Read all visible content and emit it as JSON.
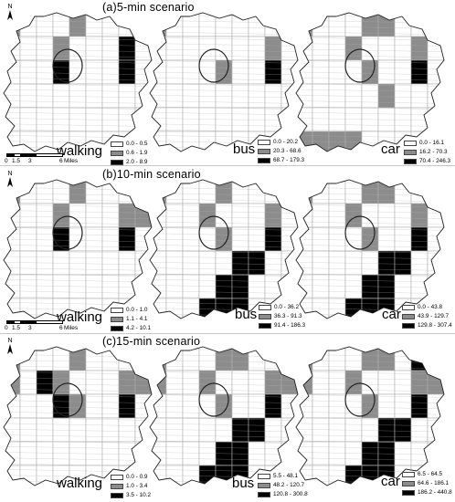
{
  "scale": {
    "ticks": [
      "0",
      "1.5",
      "3",
      "6"
    ],
    "unit": "Miles"
  },
  "north": "N",
  "colors": {
    "class1": "#ffffff",
    "class2": "#8c8c8c",
    "class3": "#000000",
    "outline": "#222222",
    "streets": "#b0b0b0"
  },
  "panels": [
    {
      "title": "(a)5-min scenario",
      "maps": [
        {
          "mode": "walking",
          "legend": [
            "0.0 - 0.5",
            "0.6 - 1.9",
            "2.0 - 8.9"
          ],
          "zones": [
            2,
            0,
            0,
            0,
            2,
            0,
            0,
            0,
            1,
            1,
            0,
            1,
            2,
            0,
            0,
            1,
            3,
            1,
            0,
            0,
            0,
            3,
            1,
            0,
            0,
            3,
            0,
            0,
            0,
            0,
            0,
            0,
            0,
            0,
            0,
            0,
            0,
            0,
            0,
            0,
            0,
            0,
            0,
            0,
            0,
            0,
            0,
            0,
            0,
            0,
            0,
            0,
            0,
            0
          ]
        },
        {
          "mode": "bus",
          "legend": [
            "0.0 - 20.2",
            "20.3 - 68.6",
            "68.7 - 179.3"
          ],
          "zones": [
            2,
            0,
            0,
            0,
            0,
            0,
            0,
            0,
            2,
            0,
            0,
            1,
            0,
            0,
            0,
            1,
            2,
            1,
            0,
            0,
            0,
            0,
            2,
            0,
            0,
            3,
            0,
            0,
            0,
            0,
            0,
            0,
            0,
            0,
            0,
            0,
            0,
            0,
            0,
            0,
            0,
            0,
            0,
            0,
            0,
            0,
            0,
            0,
            0,
            0,
            0,
            0,
            0,
            0
          ]
        },
        {
          "mode": "car",
          "legend": [
            "0.0 - 16.1",
            "16.2 - 70.3",
            "70.4 - 246.3"
          ],
          "zones": [
            2,
            0,
            0,
            0,
            2,
            2,
            0,
            0,
            2,
            1,
            0,
            1,
            2,
            0,
            0,
            1,
            2,
            1,
            0,
            0,
            0,
            0,
            2,
            0,
            0,
            3,
            0,
            0,
            0,
            0,
            0,
            0,
            2,
            0,
            0,
            0,
            0,
            0,
            0,
            0,
            0,
            0,
            0,
            0,
            0,
            2,
            2,
            2,
            2,
            0,
            0,
            0,
            0,
            2
          ]
        }
      ]
    },
    {
      "title": "(b)10-min scenario",
      "maps": [
        {
          "mode": "walking",
          "legend": [
            "0.0 - 1.0",
            "1.1 - 4.1",
            "4.2 - 10.1"
          ],
          "zones": [
            2,
            0,
            0,
            0,
            2,
            0,
            0,
            0,
            2,
            1,
            0,
            1,
            2,
            0,
            0,
            1,
            2,
            2,
            0,
            0,
            0,
            3,
            1,
            0,
            0,
            3,
            0,
            0,
            0,
            0,
            0,
            0,
            0,
            0,
            0,
            0,
            0,
            0,
            0,
            0,
            0,
            0,
            0,
            0,
            0,
            0,
            0,
            0,
            0,
            0,
            0,
            0,
            0,
            0
          ]
        },
        {
          "mode": "bus",
          "legend": [
            "0.0 - 36.2",
            "36.3 - 91.3",
            "91.4 - 186.3"
          ],
          "zones": [
            2,
            0,
            0,
            0,
            2,
            0,
            0,
            0,
            2,
            1,
            0,
            1,
            2,
            0,
            0,
            1,
            2,
            1,
            0,
            0,
            0,
            0,
            2,
            0,
            0,
            3,
            0,
            0,
            0,
            0,
            0,
            0,
            3,
            3,
            0,
            0,
            0,
            0,
            0,
            0,
            3,
            3,
            0,
            0,
            0,
            0,
            0,
            0,
            3,
            3,
            3,
            0,
            0,
            0
          ]
        },
        {
          "mode": "car",
          "legend": [
            "0.0 - 43.8",
            "43.9 - 129.7",
            "129.8 - 307.4"
          ],
          "zones": [
            2,
            0,
            0,
            0,
            2,
            2,
            0,
            0,
            2,
            1,
            0,
            1,
            2,
            0,
            0,
            1,
            2,
            1,
            0,
            0,
            0,
            0,
            2,
            0,
            0,
            3,
            0,
            0,
            0,
            0,
            0,
            0,
            3,
            3,
            0,
            0,
            0,
            0,
            0,
            0,
            3,
            3,
            0,
            0,
            0,
            0,
            0,
            0,
            3,
            3,
            3,
            0,
            0,
            0
          ]
        }
      ]
    },
    {
      "title": "(c)15-min scenario",
      "maps": [
        {
          "mode": "walking",
          "legend": [
            "0.0 - 0.9",
            "1.0 - 3.4",
            "3.5 - 10.2"
          ],
          "zones": [
            2,
            0,
            0,
            0,
            2,
            0,
            0,
            0,
            2,
            2,
            0,
            3,
            2,
            0,
            0,
            1,
            2,
            2,
            0,
            0,
            0,
            3,
            2,
            0,
            0,
            3,
            0,
            0,
            0,
            0,
            0,
            0,
            0,
            0,
            0,
            0,
            0,
            0,
            0,
            0,
            0,
            0,
            0,
            0,
            0,
            0,
            0,
            0,
            0,
            0,
            0,
            0,
            0,
            0
          ]
        },
        {
          "mode": "bus",
          "legend": [
            "5.5 - 48.1",
            "48.2 - 120.7",
            "120.8 - 300.8"
          ],
          "zones": [
            2,
            0,
            0,
            0,
            2,
            2,
            0,
            0,
            2,
            2,
            0,
            1,
            2,
            0,
            0,
            1,
            2,
            2,
            0,
            0,
            0,
            0,
            2,
            0,
            0,
            3,
            0,
            0,
            0,
            0,
            0,
            0,
            3,
            3,
            0,
            0,
            0,
            0,
            0,
            0,
            3,
            3,
            0,
            0,
            0,
            0,
            0,
            0,
            3,
            3,
            3,
            0,
            0,
            2
          ]
        },
        {
          "mode": "car",
          "legend": [
            "6.5 - 64.5",
            "64.6 - 186.1",
            "186.2 - 440.8"
          ],
          "zones": [
            2,
            0,
            0,
            0,
            2,
            2,
            0,
            3,
            2,
            2,
            0,
            1,
            2,
            0,
            0,
            1,
            2,
            2,
            0,
            0,
            0,
            0,
            2,
            0,
            0,
            3,
            0,
            0,
            0,
            0,
            0,
            0,
            3,
            3,
            0,
            0,
            0,
            0,
            0,
            0,
            3,
            3,
            0,
            0,
            0,
            0,
            0,
            0,
            3,
            3,
            3,
            0,
            0,
            2
          ]
        }
      ]
    }
  ]
}
